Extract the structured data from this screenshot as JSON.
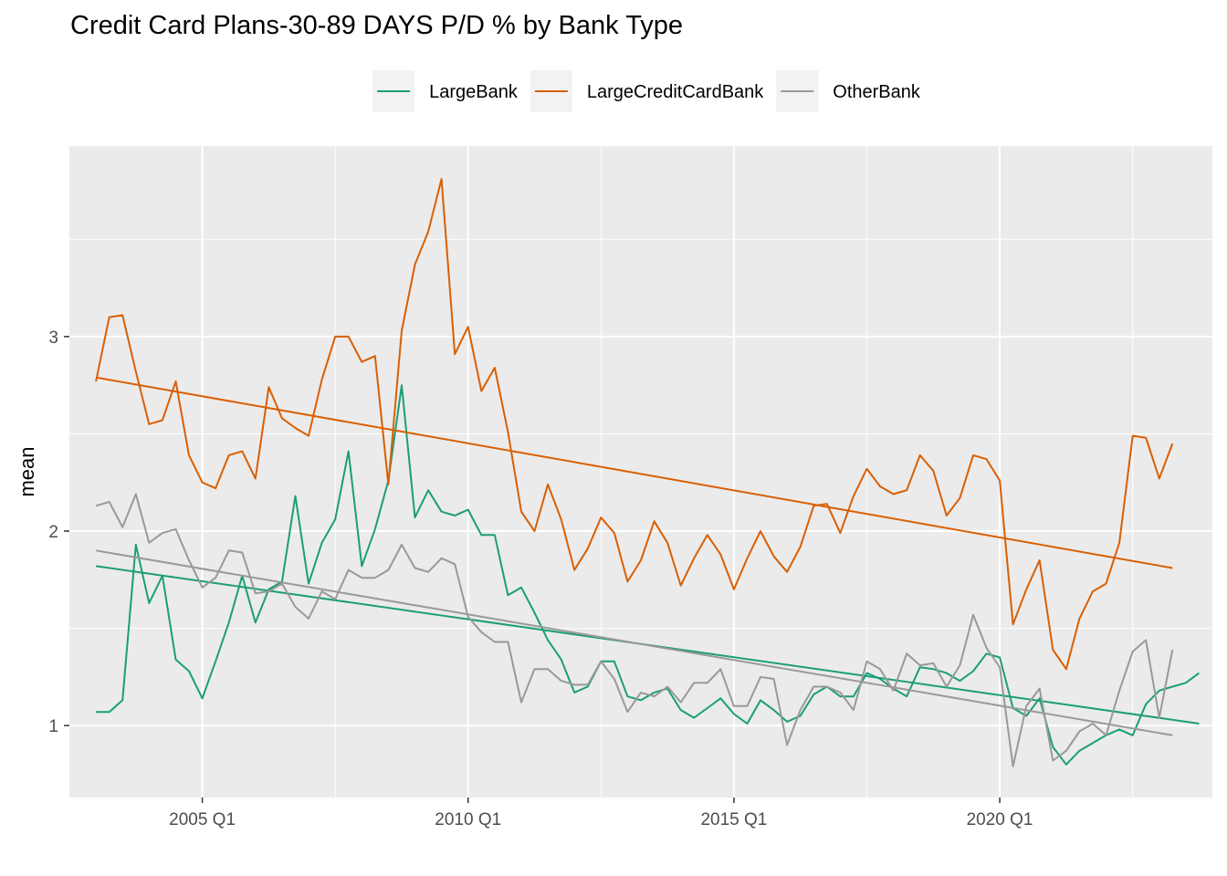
{
  "chart_data": {
    "type": "line",
    "title": "Credit Card Plans-30-89 DAYS P/D % by Bank Type",
    "xlabel": "",
    "ylabel": "mean",
    "x_ticks": [
      "2005 Q1",
      "2010 Q1",
      "2015 Q1",
      "2020 Q1"
    ],
    "y_ticks": [
      1,
      2,
      3
    ],
    "xlim": [
      2002.5,
      2024.0
    ],
    "ylim": [
      0.63,
      3.98
    ],
    "grid": true,
    "legend_position": "top",
    "x_start": 2003.0,
    "x_step": 0.25,
    "series": [
      {
        "name": "LargeBank",
        "color": "#1b9e77",
        "values": [
          1.07,
          1.07,
          1.13,
          1.93,
          1.63,
          1.77,
          1.34,
          1.28,
          1.14,
          1.33,
          1.53,
          1.77,
          1.53,
          1.7,
          1.74,
          2.18,
          1.73,
          1.94,
          2.06,
          2.41,
          1.82,
          2.01,
          2.26,
          2.75,
          2.07,
          2.21,
          2.1,
          2.08,
          2.11,
          1.98,
          1.98,
          1.67,
          1.71,
          1.58,
          1.44,
          1.34,
          1.17,
          1.2,
          1.33,
          1.33,
          1.15,
          1.13,
          1.17,
          1.19,
          1.08,
          1.04,
          1.09,
          1.14,
          1.06,
          1.01,
          1.13,
          1.08,
          1.02,
          1.05,
          1.16,
          1.2,
          1.15,
          1.15,
          1.27,
          1.24,
          1.19,
          1.15,
          1.3,
          1.29,
          1.27,
          1.23,
          1.28,
          1.37,
          1.35,
          1.09,
          1.05,
          1.14,
          0.89,
          0.8,
          0.87,
          0.91,
          0.95,
          0.98,
          0.95,
          1.11,
          1.18,
          1.2,
          1.22,
          1.27
        ],
        "trend": [
          1.82,
          1.01
        ]
      },
      {
        "name": "LargeCreditCardBank",
        "color": "#d95f02",
        "values": [
          2.77,
          3.1,
          3.11,
          2.82,
          2.55,
          2.57,
          2.77,
          2.39,
          2.25,
          2.22,
          2.39,
          2.41,
          2.27,
          2.74,
          2.58,
          2.53,
          2.49,
          2.78,
          3.0,
          3.0,
          2.87,
          2.9,
          2.24,
          3.03,
          3.37,
          3.54,
          3.81,
          2.91,
          3.05,
          2.72,
          2.84,
          2.51,
          2.1,
          2.0,
          2.24,
          2.06,
          1.8,
          1.91,
          2.07,
          1.99,
          1.74,
          1.85,
          2.05,
          1.94,
          1.72,
          1.86,
          1.98,
          1.88,
          1.7,
          1.86,
          2.0,
          1.87,
          1.79,
          1.92,
          2.13,
          2.14,
          1.99,
          2.18,
          2.32,
          2.23,
          2.19,
          2.21,
          2.39,
          2.31,
          2.08,
          2.17,
          2.39,
          2.37,
          2.26,
          1.52,
          1.7,
          1.85,
          1.39,
          1.29,
          1.55,
          1.69,
          1.73,
          1.94,
          2.49,
          2.48,
          2.27,
          2.45
        ],
        "trend": [
          2.79,
          1.81
        ]
      },
      {
        "name": "OtherBank",
        "color": "#999999",
        "values": [
          2.13,
          2.15,
          2.02,
          2.19,
          1.94,
          1.99,
          2.01,
          1.85,
          1.71,
          1.76,
          1.9,
          1.89,
          1.68,
          1.69,
          1.73,
          1.61,
          1.55,
          1.69,
          1.65,
          1.8,
          1.76,
          1.76,
          1.8,
          1.93,
          1.81,
          1.79,
          1.86,
          1.83,
          1.56,
          1.48,
          1.43,
          1.43,
          1.12,
          1.29,
          1.29,
          1.23,
          1.21,
          1.21,
          1.33,
          1.24,
          1.07,
          1.17,
          1.15,
          1.2,
          1.12,
          1.22,
          1.22,
          1.29,
          1.1,
          1.1,
          1.25,
          1.24,
          0.9,
          1.08,
          1.2,
          1.2,
          1.17,
          1.08,
          1.33,
          1.29,
          1.18,
          1.37,
          1.31,
          1.32,
          1.2,
          1.31,
          1.57,
          1.4,
          1.3,
          0.79,
          1.1,
          1.19,
          0.82,
          0.87,
          0.97,
          1.01,
          0.95,
          1.18,
          1.38,
          1.44,
          1.04,
          1.39
        ],
        "trend": [
          1.9,
          0.95
        ]
      }
    ]
  }
}
